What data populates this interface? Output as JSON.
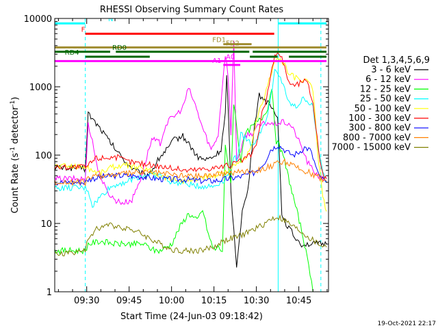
{
  "chart_data": {
    "type": "line",
    "title": "RHESSI Observing Summary Count Rates",
    "xlabel": "Start Time (24-Jun-03 09:18:42)",
    "ylabel_main": "Count Rate (s",
    "ylabel_sup1": "-1",
    "ylabel_mid": " detector",
    "ylabel_sup2": "-1",
    "ylabel_end": ")",
    "yscale": "log",
    "ylim": [
      1,
      10000
    ],
    "xlim_minutes": [
      "09:18:42",
      "10:55:30"
    ],
    "ytick_labels": [
      "1",
      "10",
      "100",
      "1000",
      "10000"
    ],
    "ytick_values": [
      1,
      10,
      100,
      1000,
      10000
    ],
    "xtick_labels": [
      "09:30",
      "09:45",
      "10:00",
      "10:15",
      "10:30",
      "10:45"
    ],
    "xtick_values_min": [
      570,
      585,
      600,
      615,
      630,
      645
    ],
    "legend_title": "Det 1,3,4,5,6,9",
    "legend_position": "right",
    "timestamp": "19-Oct-2021 22:17",
    "vlines": [
      {
        "t": 569.5,
        "color": "#00ffff",
        "style": "dashed"
      },
      {
        "t": 637.7,
        "color": "#00ffff",
        "style": "solid"
      },
      {
        "t": 652.8,
        "color": "#00ffff",
        "style": "dashed"
      }
    ],
    "flags": [
      {
        "label": "N",
        "color": "#00ffff",
        "y": 10.0,
        "segments": [
          [
            558.7,
            569.5
          ],
          [
            637.7,
            654.8
          ]
        ]
      },
      {
        "label": "F",
        "color": "#ff0000",
        "y": 9.05,
        "segments": [
          [
            569.5,
            636.3
          ]
        ]
      },
      {
        "label": "FD1",
        "color": "#a08c30",
        "y": 8.1,
        "segments": [
          [
            618.3,
            628.3
          ]
        ]
      },
      {
        "label": "FD2",
        "color": "#a08c30",
        "y": 7.8,
        "segments": [
          [
            558.7,
            654.8
          ]
        ]
      },
      {
        "label": "RD0",
        "color": "#006600",
        "y": 7.4,
        "segments": [
          [
            558.7,
            578.3
          ],
          [
            580.3,
            627.5
          ],
          [
            628.7,
            654.8
          ]
        ]
      },
      {
        "label": "RD4",
        "color": "#006600",
        "y": 6.95,
        "segments": [
          [
            569.5,
            592.3
          ],
          [
            627.7,
            637.5
          ],
          [
            641.5,
            654.8
          ]
        ]
      },
      {
        "label": "A0",
        "color": "#ff00ff",
        "y": 6.55,
        "segments": [
          [
            558.7,
            654.8
          ]
        ]
      },
      {
        "label": "A1",
        "color": "#ff00ff",
        "y": 6.2,
        "segments": [
          [
            618.3,
            624.3
          ]
        ]
      }
    ],
    "series": [
      {
        "name": "3 - 6 keV",
        "color": "#000000",
        "x": [
          558.7,
          569.0,
          569.5,
          570.5,
          572.5,
          575,
          578,
          581,
          583.3,
          585,
          587,
          589,
          591,
          593,
          596,
          599,
          601,
          604,
          606.5,
          609,
          612,
          615,
          617.5,
          619,
          619.5,
          620.2,
          621,
          622,
          623,
          625,
          627,
          629,
          631,
          633,
          635,
          637.5,
          639,
          640.5,
          642,
          644,
          646,
          648,
          650,
          653,
          654.8
        ],
        "y": [
          65,
          65,
          60,
          410,
          320,
          240,
          160,
          110,
          85,
          70,
          60,
          55,
          50,
          60,
          95,
          130,
          170,
          190,
          140,
          95,
          85,
          95,
          120,
          400,
          1400,
          300,
          30,
          8,
          2.5,
          15,
          30,
          220,
          750,
          650,
          520,
          380,
          14,
          10,
          8,
          6,
          5,
          5,
          5,
          5,
          5
        ]
      },
      {
        "name": "6 - 12 keV",
        "color": "#ff00ff",
        "x": [
          558.7,
          569.0,
          569.5,
          570.5,
          572,
          574,
          577,
          580,
          583,
          586,
          589,
          593,
          596,
          598,
          600,
          602,
          604,
          606,
          608,
          611,
          614,
          616.5,
          618,
          619,
          620,
          621,
          622,
          623,
          624.5,
          626,
          628,
          630,
          632,
          634,
          636,
          638,
          640,
          642,
          644,
          646,
          648,
          650,
          653,
          654.8
        ],
        "y": [
          45,
          45,
          42,
          300,
          160,
          60,
          30,
          22,
          20,
          22,
          45,
          170,
          150,
          280,
          350,
          400,
          500,
          950,
          600,
          250,
          120,
          200,
          1100,
          3000,
          1500,
          200,
          5000,
          90,
          110,
          200,
          200,
          250,
          280,
          300,
          280,
          300,
          300,
          280,
          200,
          130,
          80,
          60,
          45,
          45
        ]
      },
      {
        "name": "12 - 25 keV",
        "color": "#00ff00",
        "x": [
          558.7,
          569.5,
          570.5,
          575,
          580,
          585,
          590,
          594,
          596,
          600,
          603,
          606,
          609,
          611,
          613,
          614.5,
          615.5,
          616.5,
          618,
          619,
          621,
          622,
          624.5,
          626,
          628,
          630,
          632,
          634,
          635.5,
          637,
          638,
          640,
          643,
          646,
          648,
          650
        ],
        "y": [
          4,
          4,
          5,
          5.5,
          5,
          5,
          5,
          4,
          4,
          5,
          9,
          14,
          11,
          16,
          7,
          4.5,
          4.2,
          4.5,
          4,
          130,
          40,
          600,
          80,
          200,
          250,
          300,
          350,
          500,
          1000,
          160,
          140,
          80,
          25,
          8,
          3,
          1
        ]
      },
      {
        "name": "25 - 50 keV",
        "color": "#00ffff",
        "x": [
          558.7,
          569.5,
          570.5,
          572,
          575,
          578,
          581,
          585,
          588,
          592,
          596,
          600,
          605,
          610,
          615,
          619,
          621,
          622,
          623,
          624.5,
          626,
          628,
          630,
          632,
          634,
          636.5,
          638.5,
          640,
          641,
          644,
          647,
          650,
          652,
          653.5,
          654.8
        ],
        "y": [
          33,
          33,
          31,
          18,
          25,
          33,
          38,
          42,
          48,
          52,
          50,
          40,
          38,
          35,
          35,
          45,
          60,
          100,
          80,
          200,
          180,
          150,
          160,
          250,
          380,
          1700,
          1300,
          1000,
          600,
          500,
          700,
          500,
          110,
          55,
          40
        ]
      },
      {
        "name": "50 - 100 keV",
        "color": "#ffff00",
        "x": [
          558.7,
          569.5,
          570.5,
          572,
          575,
          578,
          581,
          585,
          588,
          592,
          596,
          600,
          605,
          610,
          615,
          620,
          624,
          626,
          628,
          630,
          632,
          634,
          636,
          637.5,
          639,
          640.5,
          641.5,
          643,
          645,
          646.5,
          648,
          650,
          652,
          653.5,
          654.8
        ],
        "y": [
          70,
          68,
          65,
          60,
          55,
          65,
          70,
          70,
          65,
          60,
          50,
          45,
          42,
          45,
          50,
          60,
          75,
          90,
          120,
          300,
          600,
          1000,
          2200,
          2600,
          2400,
          1900,
          1500,
          1400,
          1300,
          1200,
          1250,
          900,
          80,
          25,
          15
        ]
      },
      {
        "name": "100 - 300 keV",
        "color": "#ff0000",
        "x": [
          558.7,
          569.5,
          570.5,
          573,
          576,
          580,
          585,
          590,
          595,
          600,
          605,
          610,
          615,
          620,
          624,
          626,
          628,
          630,
          632,
          634,
          636,
          637.5,
          639,
          640.5,
          641.5,
          643,
          645,
          646.5,
          648,
          650,
          652,
          653.5,
          654.8
        ],
        "y": [
          67,
          67,
          70,
          90,
          92,
          95,
          80,
          75,
          70,
          65,
          60,
          62,
          66,
          70,
          80,
          90,
          100,
          140,
          400,
          800,
          2400,
          3300,
          2700,
          1600,
          1200,
          1050,
          1100,
          1250,
          1150,
          600,
          120,
          50,
          45
        ]
      },
      {
        "name": "300 - 800 keV",
        "color": "#0000ff",
        "x": [
          558.7,
          569.5,
          570.5,
          575,
          580,
          585,
          590,
          595,
          600,
          605,
          610,
          615,
          620,
          624,
          627,
          629,
          631,
          633,
          635,
          637.5,
          639,
          641,
          643,
          645,
          647,
          649,
          650.5,
          652,
          654.8
        ],
        "y": [
          40,
          40,
          44,
          48,
          50,
          50,
          48,
          45,
          44,
          44,
          42,
          42,
          45,
          48,
          52,
          55,
          65,
          80,
          120,
          140,
          130,
          110,
          100,
          110,
          130,
          120,
          80,
          50,
          40
        ]
      },
      {
        "name": "800 - 7000 keV",
        "color": "#ff8000",
        "x": [
          558.7,
          569.5,
          570.5,
          575,
          580,
          585,
          590,
          595,
          600,
          605,
          610,
          615,
          620,
          625,
          630,
          635,
          638,
          640,
          643,
          646,
          649,
          652,
          654.8
        ],
        "y": [
          40,
          40,
          46,
          50,
          52,
          54,
          56,
          55,
          52,
          50,
          50,
          52,
          55,
          58,
          60,
          68,
          78,
          80,
          70,
          60,
          55,
          48,
          42
        ]
      },
      {
        "name": "7000 - 15000 keV",
        "color": "#808000",
        "x": [
          558.7,
          563,
          566,
          569.5,
          570.5,
          573,
          575,
          578,
          581,
          585,
          588,
          591,
          594,
          597,
          600,
          603,
          606,
          609,
          612,
          615,
          618,
          621,
          624,
          627,
          630,
          633,
          635,
          637.5,
          640,
          643,
          646,
          649,
          652,
          654.8
        ],
        "y": [
          3.5,
          3.7,
          3.8,
          4,
          6,
          8,
          9,
          9.5,
          9,
          8.5,
          7.5,
          6.5,
          5.5,
          4.8,
          4.2,
          4,
          4,
          4,
          4.2,
          4.5,
          5.5,
          6,
          6.5,
          7.5,
          8.5,
          10,
          11.5,
          12.5,
          11,
          9,
          7.5,
          6,
          5,
          4.5
        ]
      }
    ]
  }
}
